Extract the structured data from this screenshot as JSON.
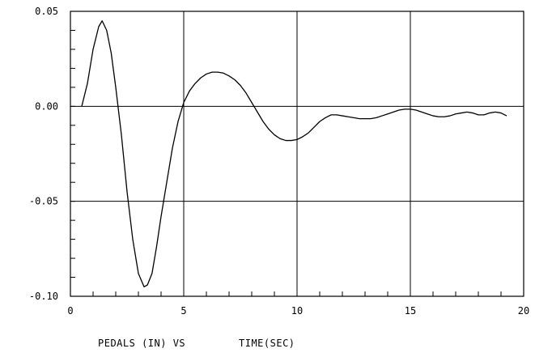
{
  "chart_data": {
    "type": "line",
    "title": "",
    "caption_left": "PEDALS (IN) VS",
    "caption_right": "TIME(SEC)",
    "xlim": [
      0,
      20
    ],
    "ylim": [
      -0.1,
      0.05
    ],
    "x_ticks": [
      0,
      5,
      10,
      15,
      20
    ],
    "x_tick_labels": [
      "0",
      "5",
      "10",
      "15",
      "20"
    ],
    "y_ticks": [
      0.05,
      0.0,
      -0.05,
      -0.1
    ],
    "y_tick_labels": [
      "0.05",
      "0.00",
      "-0.05",
      "-0.10"
    ],
    "grid": true,
    "series": [
      {
        "x": [
          0.5,
          0.75,
          1.0,
          1.25,
          1.4,
          1.6,
          1.8,
          2.0,
          2.25,
          2.5,
          2.75,
          3.0,
          3.25,
          3.4,
          3.6,
          3.8,
          4.0,
          4.25,
          4.5,
          4.75,
          5.0,
          5.25,
          5.5,
          5.75,
          6.0,
          6.25,
          6.5,
          6.75,
          7.0,
          7.25,
          7.5,
          7.75,
          8.0,
          8.25,
          8.5,
          8.75,
          9.0,
          9.25,
          9.5,
          9.75,
          10.0,
          10.25,
          10.5,
          10.75,
          11.0,
          11.25,
          11.5,
          11.75,
          12.0,
          12.25,
          12.5,
          12.75,
          13.0,
          13.25,
          13.5,
          13.75,
          14.0,
          14.25,
          14.5,
          14.75,
          15.0,
          15.25,
          15.5,
          15.75,
          16.0,
          16.25,
          16.5,
          16.75,
          17.0,
          17.25,
          17.5,
          17.75,
          18.0,
          18.25,
          18.5,
          18.75,
          19.0,
          19.25
        ],
        "y": [
          0.0,
          0.012,
          0.03,
          0.042,
          0.045,
          0.04,
          0.028,
          0.01,
          -0.015,
          -0.045,
          -0.07,
          -0.088,
          -0.095,
          -0.094,
          -0.088,
          -0.074,
          -0.058,
          -0.04,
          -0.022,
          -0.008,
          0.002,
          0.008,
          0.012,
          0.015,
          0.017,
          0.018,
          0.018,
          0.0175,
          0.016,
          0.014,
          0.011,
          0.007,
          0.002,
          -0.003,
          -0.008,
          -0.012,
          -0.015,
          -0.017,
          -0.018,
          -0.018,
          -0.0175,
          -0.016,
          -0.014,
          -0.011,
          -0.008,
          -0.006,
          -0.0045,
          -0.0045,
          -0.005,
          -0.0055,
          -0.006,
          -0.0065,
          -0.0065,
          -0.0065,
          -0.006,
          -0.005,
          -0.004,
          -0.003,
          -0.002,
          -0.0015,
          -0.0015,
          -0.002,
          -0.003,
          -0.004,
          -0.005,
          -0.0055,
          -0.0055,
          -0.005,
          -0.004,
          -0.0035,
          -0.003,
          -0.0035,
          -0.0045,
          -0.0045,
          -0.0035,
          -0.003,
          -0.0035,
          -0.005
        ]
      }
    ]
  }
}
